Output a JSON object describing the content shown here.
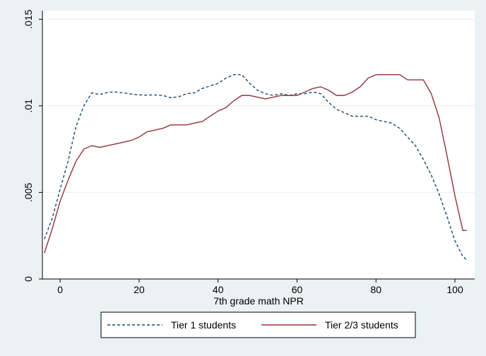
{
  "chart_data": {
    "type": "line",
    "title": "",
    "xlabel": "7th grade math NPR",
    "ylabel": "",
    "xlim": [
      -4.5,
      105
    ],
    "ylim": [
      0,
      0.0155
    ],
    "xticks": [
      0,
      20,
      40,
      60,
      80,
      100
    ],
    "xtick_labels": [
      "0",
      "20",
      "40",
      "60",
      "80",
      "100"
    ],
    "yticks": [
      0,
      0.005,
      0.01,
      0.015
    ],
    "ytick_labels": [
      "0",
      ".005",
      ".01",
      ".015"
    ],
    "grid": "horizontal",
    "legend_position": "bottom",
    "background": "#eaf2f3",
    "plot_background": "#ffffff",
    "series": [
      {
        "name": "Tier 1 students",
        "color": "#1a476f",
        "dash": "dashed",
        "x": [
          -4,
          -2,
          0,
          2,
          4,
          6,
          8,
          10,
          12,
          14,
          16,
          18,
          20,
          22,
          24,
          26,
          28,
          30,
          32,
          34,
          36,
          38,
          40,
          42,
          44,
          46,
          48,
          50,
          52,
          54,
          56,
          58,
          60,
          62,
          64,
          66,
          68,
          70,
          72,
          74,
          76,
          78,
          80,
          82,
          84,
          86,
          88,
          90,
          92,
          94,
          96,
          98,
          100,
          102,
          103
        ],
        "y": [
          0.0023,
          0.0035,
          0.0052,
          0.0068,
          0.0088,
          0.01,
          0.01075,
          0.01065,
          0.01078,
          0.0108,
          0.01075,
          0.01068,
          0.01063,
          0.01062,
          0.01063,
          0.0106,
          0.01047,
          0.01052,
          0.0107,
          0.01075,
          0.011,
          0.01115,
          0.0113,
          0.0116,
          0.0118,
          0.0118,
          0.0113,
          0.0109,
          0.0107,
          0.0106,
          0.0107,
          0.0106,
          0.0107,
          0.0107,
          0.0108,
          0.0107,
          0.0102,
          0.0098,
          0.0096,
          0.0094,
          0.0094,
          0.0094,
          0.0092,
          0.0091,
          0.009,
          0.0087,
          0.0082,
          0.0077,
          0.0069,
          0.006,
          0.0049,
          0.0036,
          0.0022,
          0.0013,
          0.0011
        ]
      },
      {
        "name": "Tier 2/3 students",
        "color": "#90353b",
        "dash": "solid",
        "x": [
          -4,
          -2,
          0,
          2,
          4,
          6,
          8,
          10,
          12,
          14,
          16,
          18,
          20,
          22,
          24,
          26,
          28,
          30,
          32,
          34,
          36,
          38,
          40,
          42,
          44,
          46,
          48,
          50,
          52,
          54,
          56,
          58,
          60,
          62,
          64,
          66,
          68,
          70,
          72,
          74,
          76,
          78,
          80,
          82,
          84,
          86,
          88,
          90,
          92,
          94,
          96,
          98,
          100,
          102,
          103
        ],
        "y": [
          0.0015,
          0.0029,
          0.0045,
          0.0057,
          0.0068,
          0.0075,
          0.0077,
          0.0076,
          0.0077,
          0.0078,
          0.0079,
          0.008,
          0.0082,
          0.0085,
          0.0086,
          0.0087,
          0.0089,
          0.0089,
          0.0089,
          0.009,
          0.0091,
          0.0094,
          0.0097,
          0.0099,
          0.0103,
          0.0106,
          0.0106,
          0.0105,
          0.0104,
          0.0105,
          0.0106,
          0.0106,
          0.0106,
          0.0108,
          0.011,
          0.0111,
          0.0109,
          0.0106,
          0.0106,
          0.0108,
          0.0111,
          0.0116,
          0.0118,
          0.0118,
          0.0118,
          0.0118,
          0.0115,
          0.0115,
          0.0115,
          0.0107,
          0.0093,
          0.0071,
          0.0048,
          0.0028,
          0.0028
        ]
      }
    ]
  }
}
